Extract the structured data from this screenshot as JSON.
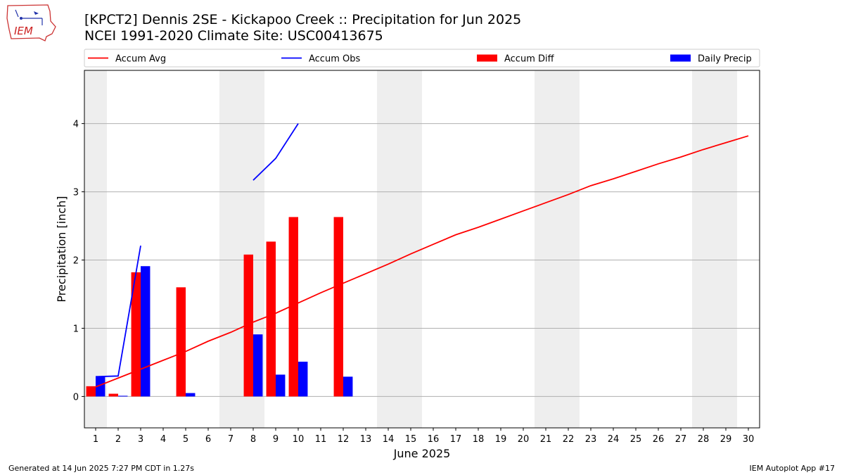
{
  "header": {
    "title_line1": "[KPCT2] Dennis 2SE - Kickapoo Creek :: Precipitation for Jun 2025",
    "title_line2": "NCEI 1991-2020 Climate Site: USC00413675",
    "logo_text": "IEM"
  },
  "footer": {
    "generated": "Generated at 14 Jun 2025 7:27 PM CDT in 1.27s",
    "app": "IEM Autoplot App #17"
  },
  "colors": {
    "accum_avg": "#ff0000",
    "accum_obs": "#0000ff",
    "accum_diff": "#ff0000",
    "daily_precip": "#0000ff",
    "weekend_shade": "#eeeeee",
    "grid": "#b0b0b0"
  },
  "chart_data": {
    "type": "bar",
    "xlabel": "June 2025",
    "ylabel": "Precipitation [inch]",
    "x": [
      1,
      2,
      3,
      4,
      5,
      6,
      7,
      8,
      9,
      10,
      11,
      12,
      13,
      14,
      15,
      16,
      17,
      18,
      19,
      20,
      21,
      22,
      23,
      24,
      25,
      26,
      27,
      28,
      29,
      30
    ],
    "xlim": [
      0.5,
      30.5
    ],
    "ylim": [
      -0.46,
      4.78
    ],
    "yticks": [
      0,
      1,
      2,
      3,
      4
    ],
    "grid": "horizontal",
    "legend_position": "top",
    "shaded_weekends": [
      [
        1,
        1
      ],
      [
        7,
        8
      ],
      [
        14,
        15
      ],
      [
        21,
        22
      ],
      [
        28,
        29
      ]
    ],
    "series": [
      {
        "name": "Accum Avg",
        "kind": "line",
        "x": [
          1,
          2,
          3,
          4,
          5,
          6,
          7,
          8,
          9,
          10,
          11,
          12,
          13,
          14,
          15,
          16,
          17,
          18,
          19,
          20,
          21,
          22,
          23,
          24,
          25,
          26,
          27,
          28,
          29,
          30
        ],
        "values": [
          0.14,
          0.27,
          0.4,
          0.53,
          0.66,
          0.81,
          0.94,
          1.09,
          1.22,
          1.37,
          1.52,
          1.66,
          1.8,
          1.94,
          2.09,
          2.23,
          2.37,
          2.48,
          2.6,
          2.72,
          2.84,
          2.96,
          3.09,
          3.19,
          3.3,
          3.41,
          3.51,
          3.62,
          3.72,
          3.82
        ]
      },
      {
        "name": "Accum Obs",
        "kind": "line",
        "segments": [
          {
            "x": [
              1,
              2,
              3
            ],
            "values": [
              0.29,
              0.3,
              2.21
            ]
          },
          {
            "x": [
              8,
              9,
              10
            ],
            "values": [
              3.17,
              3.49,
              4.0
            ]
          }
        ]
      },
      {
        "name": "Accum Diff",
        "kind": "bar",
        "x": [
          1,
          2,
          3,
          5,
          8,
          9,
          10,
          12
        ],
        "values": [
          0.15,
          0.04,
          1.82,
          1.6,
          2.08,
          2.27,
          2.63,
          2.63
        ]
      },
      {
        "name": "Daily Precip",
        "kind": "bar",
        "x": [
          1,
          2,
          3,
          5,
          8,
          9,
          10,
          12
        ],
        "values": [
          0.29,
          0.01,
          1.91,
          0.05,
          0.91,
          0.32,
          0.51,
          0.29
        ]
      }
    ]
  }
}
